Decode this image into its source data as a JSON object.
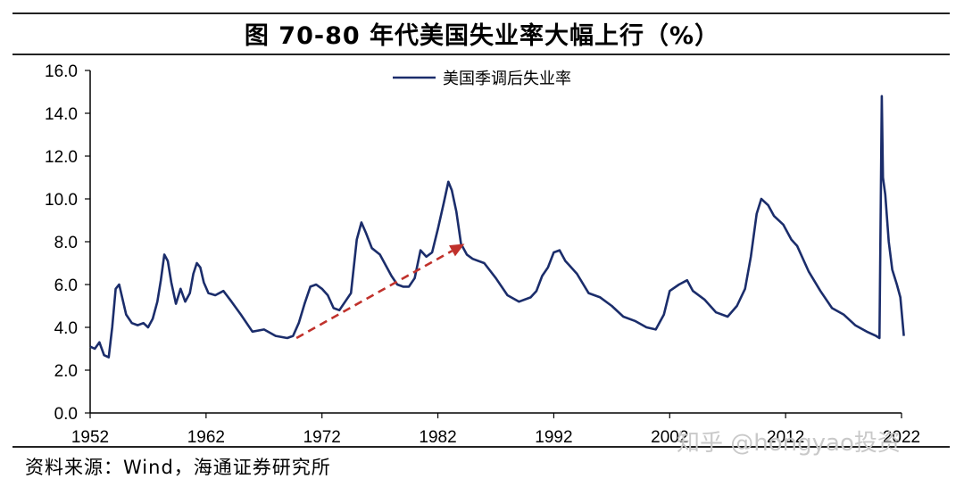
{
  "title": "图 70-80 年代美国失业率大幅上行（%）",
  "source_note": "资料来源：Wind，海通证券研究所",
  "watermark": "知乎 @hongyao投资",
  "colors": {
    "series": "#1b2d6b",
    "arrow": "#c0312b",
    "axis": "#000000"
  },
  "chart_data": {
    "type": "line",
    "title": "图 70-80 年代美国失业率大幅上行（%）",
    "xlabel": "",
    "ylabel": "",
    "xlim": [
      1952,
      2022
    ],
    "ylim": [
      0,
      16
    ],
    "grid": false,
    "legend_position": "top-center",
    "y_ticks": [
      "0.0",
      "2.0",
      "4.0",
      "6.0",
      "8.0",
      "10.0",
      "12.0",
      "14.0",
      "16.0"
    ],
    "x_ticks": [
      "1952",
      "1962",
      "1972",
      "1982",
      "1992",
      "2002",
      "2012",
      "2022"
    ],
    "series": [
      {
        "name": "美国季调后失业率",
        "x": [
          1952.0,
          1952.4,
          1952.8,
          1953.2,
          1953.6,
          1953.9,
          1954.2,
          1954.5,
          1954.8,
          1955.1,
          1955.6,
          1956.1,
          1956.6,
          1957.0,
          1957.4,
          1957.8,
          1958.1,
          1958.4,
          1958.7,
          1959.0,
          1959.4,
          1959.8,
          1960.2,
          1960.6,
          1960.9,
          1961.2,
          1961.5,
          1961.8,
          1962.2,
          1962.8,
          1963.5,
          1964.2,
          1965.0,
          1966.0,
          1967.0,
          1968.0,
          1969.0,
          1969.5,
          1970.0,
          1970.5,
          1971.0,
          1971.5,
          1972.0,
          1972.5,
          1973.0,
          1973.5,
          1974.0,
          1974.5,
          1975.0,
          1975.4,
          1975.8,
          1976.3,
          1977.0,
          1977.5,
          1978.0,
          1978.5,
          1979.0,
          1979.5,
          1980.0,
          1980.5,
          1981.0,
          1981.5,
          1982.0,
          1982.5,
          1982.9,
          1983.2,
          1983.6,
          1984.0,
          1984.5,
          1985.0,
          1986.0,
          1987.0,
          1988.0,
          1989.0,
          1990.0,
          1990.5,
          1991.0,
          1991.5,
          1992.0,
          1992.5,
          1993.0,
          1994.0,
          1995.0,
          1996.0,
          1997.0,
          1998.0,
          1999.0,
          2000.0,
          2000.8,
          2001.5,
          2002.0,
          2002.8,
          2003.5,
          2004.0,
          2005.0,
          2006.0,
          2007.0,
          2007.8,
          2008.5,
          2009.0,
          2009.5,
          2009.9,
          2010.5,
          2011.0,
          2011.8,
          2012.5,
          2013.0,
          2014.0,
          2015.0,
          2016.0,
          2017.0,
          2018.0,
          2019.0,
          2019.8,
          2020.1,
          2020.3,
          2020.4,
          2020.6,
          2020.9,
          2021.2,
          2021.6,
          2021.9,
          2022.2
        ],
        "values": [
          3.1,
          3.0,
          3.3,
          2.7,
          2.6,
          4.0,
          5.8,
          6.0,
          5.3,
          4.6,
          4.2,
          4.1,
          4.2,
          4.0,
          4.4,
          5.2,
          6.2,
          7.4,
          7.1,
          6.1,
          5.1,
          5.8,
          5.2,
          5.6,
          6.5,
          7.0,
          6.8,
          6.1,
          5.6,
          5.5,
          5.7,
          5.2,
          4.6,
          3.8,
          3.9,
          3.6,
          3.5,
          3.6,
          4.2,
          5.1,
          5.9,
          6.0,
          5.8,
          5.5,
          4.9,
          4.8,
          5.2,
          5.6,
          8.1,
          8.9,
          8.4,
          7.7,
          7.4,
          6.9,
          6.4,
          6.0,
          5.9,
          5.9,
          6.3,
          7.6,
          7.3,
          7.5,
          8.6,
          9.8,
          10.8,
          10.4,
          9.4,
          7.9,
          7.4,
          7.2,
          7.0,
          6.3,
          5.5,
          5.2,
          5.4,
          5.7,
          6.4,
          6.8,
          7.5,
          7.6,
          7.1,
          6.5,
          5.6,
          5.4,
          5.0,
          4.5,
          4.3,
          4.0,
          3.9,
          4.6,
          5.7,
          6.0,
          6.2,
          5.7,
          5.3,
          4.7,
          4.5,
          5.0,
          5.8,
          7.3,
          9.3,
          10.0,
          9.7,
          9.2,
          8.8,
          8.1,
          7.8,
          6.6,
          5.7,
          4.9,
          4.6,
          4.1,
          3.8,
          3.6,
          3.5,
          14.8,
          11.0,
          10.2,
          8.0,
          6.7,
          6.0,
          5.4,
          3.6
        ]
      }
    ],
    "annotations": [
      {
        "type": "dashed-arrow",
        "from": [
          1969.8,
          3.5
        ],
        "to": [
          1984.3,
          7.9
        ]
      }
    ]
  }
}
